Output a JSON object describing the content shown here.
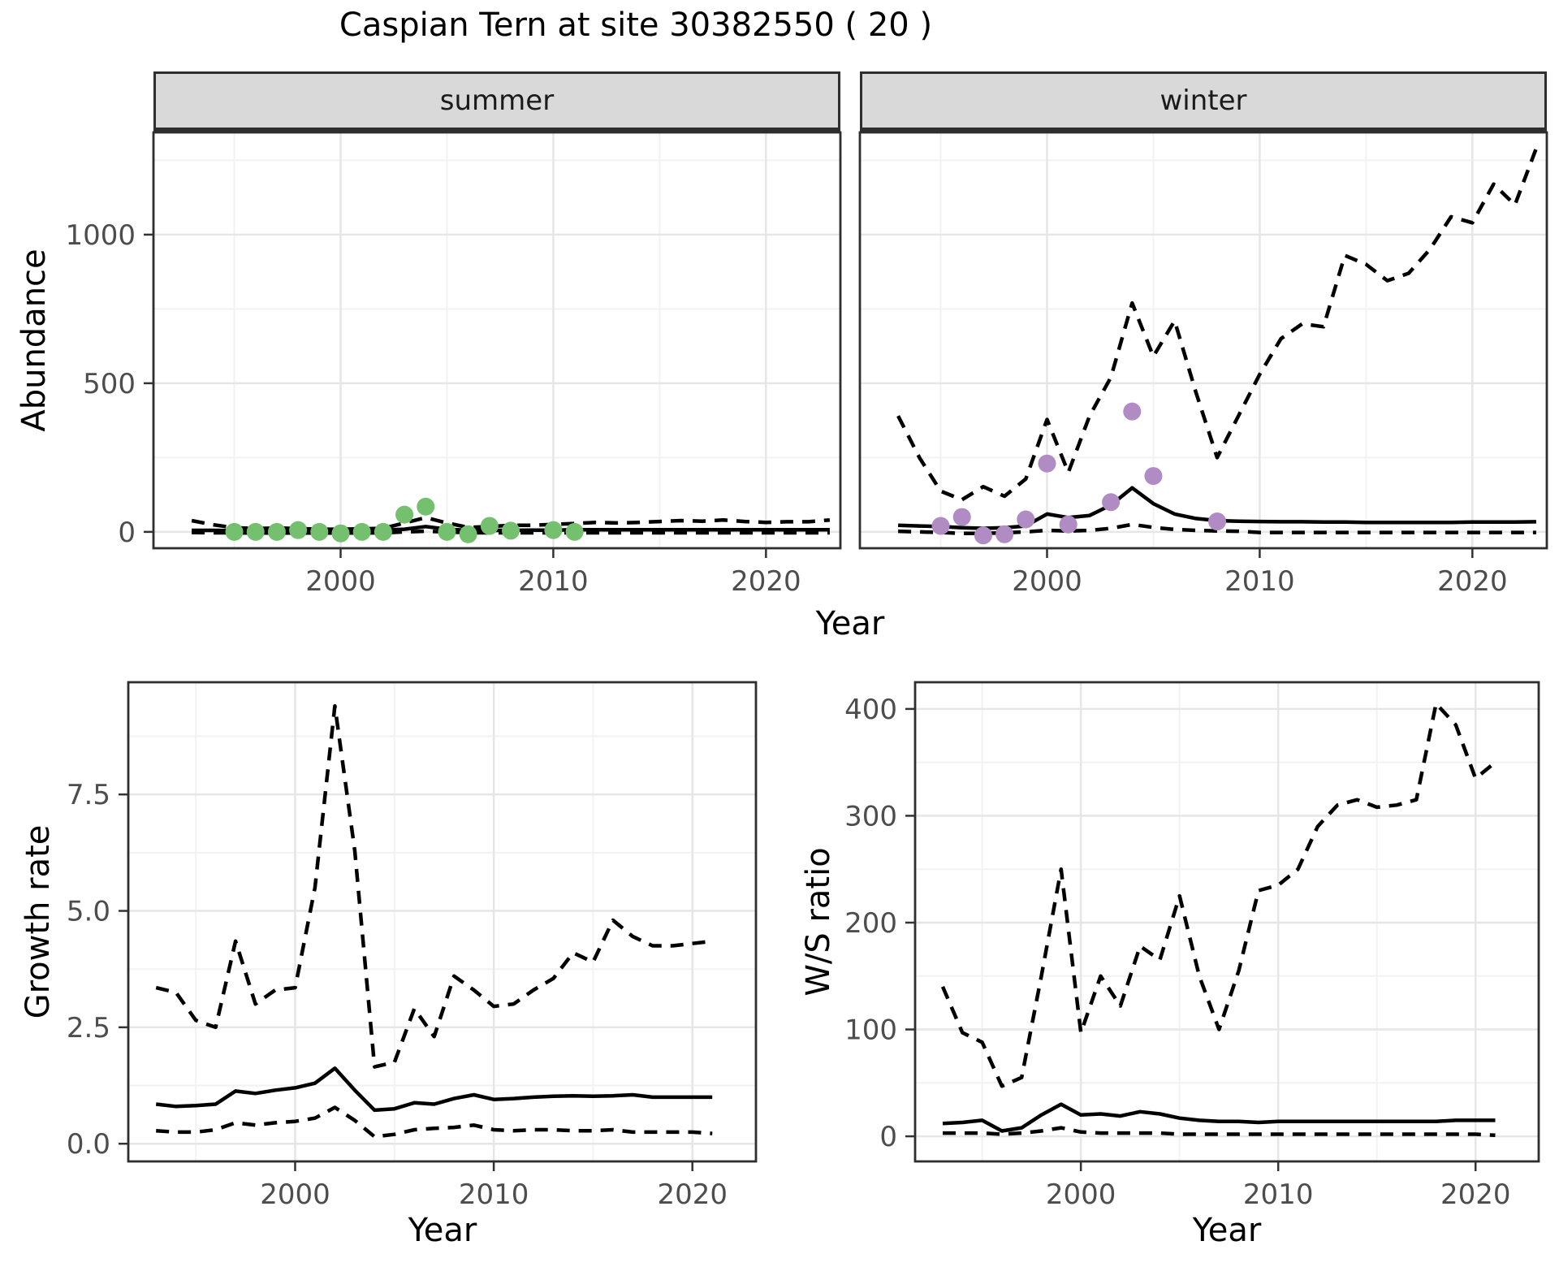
{
  "title": "Caspian Tern at site 30382550 ( 20 )",
  "colors": {
    "observed_summer": "#74c06e",
    "observed_winter": "#b18cc4",
    "line": "#000000",
    "strip_bg": "#d9d9d9",
    "panel_bg": "#ffffff",
    "panel_border": "#2e2e2e",
    "grid_major": "#e6e6e6",
    "grid_minor": "#f2f2f2",
    "tick_mark": "#333333",
    "tick_label": "#4d4d4d"
  },
  "chart_data": [
    {
      "id": "abundance-summer",
      "type": "line",
      "facet_label": "summer",
      "xlabel": "Year",
      "ylabel": "Abundance",
      "xlim": [
        1991.2,
        2023.5
      ],
      "ylim": [
        -55,
        1344
      ],
      "xticks": [
        2000,
        2010,
        2020
      ],
      "xtick_labels": [
        "2000",
        "2010",
        "2020"
      ],
      "xticks_minor": [
        1995,
        2005,
        2015
      ],
      "yticks": [
        0,
        500,
        1000
      ],
      "ytick_labels": [
        "0",
        "500",
        "1000"
      ],
      "yticks_minor": [
        250,
        750,
        1250
      ],
      "grid": true,
      "legend": "none",
      "series": [
        {
          "name": "upper-ci",
          "style": "dashed",
          "x": [
            1993,
            1994,
            1995,
            1996,
            1997,
            1998,
            1999,
            2000,
            2001,
            2002,
            2003,
            2004,
            2005,
            2006,
            2007,
            2008,
            2009,
            2010,
            2011,
            2012,
            2013,
            2014,
            2015,
            2016,
            2017,
            2018,
            2019,
            2020,
            2021,
            2022,
            2023
          ],
          "y": [
            38,
            24,
            14,
            11,
            13,
            11,
            9,
            9,
            10,
            12,
            30,
            48,
            30,
            15,
            18,
            22,
            22,
            25,
            28,
            32,
            30,
            32,
            35,
            38,
            36,
            40,
            35,
            32,
            34,
            34,
            40
          ]
        },
        {
          "name": "median",
          "style": "solid",
          "x": [
            1993,
            1994,
            1995,
            1996,
            1997,
            1998,
            1999,
            2000,
            2001,
            2002,
            2003,
            2004,
            2005,
            2006,
            2007,
            2008,
            2009,
            2010,
            2011,
            2012,
            2013,
            2014,
            2015,
            2016,
            2017,
            2018,
            2019,
            2020,
            2021,
            2022,
            2023
          ],
          "y": [
            5,
            5,
            4,
            4,
            4,
            4,
            4,
            4,
            5,
            6,
            9,
            18,
            9,
            5,
            5,
            5,
            6,
            6,
            7,
            7,
            7,
            7,
            7,
            7,
            7,
            7,
            7,
            7,
            7,
            7,
            7
          ]
        },
        {
          "name": "lower-ci",
          "style": "dashed",
          "x": [
            1993,
            1994,
            1995,
            1996,
            1997,
            1998,
            1999,
            2000,
            2001,
            2002,
            2003,
            2004,
            2005,
            2006,
            2007,
            2008,
            2009,
            2010,
            2011,
            2012,
            2013,
            2014,
            2015,
            2016,
            2017,
            2018,
            2019,
            2020,
            2021,
            2022,
            2023
          ],
          "y": [
            -2,
            -3,
            -3,
            -4,
            -4,
            -4,
            -4,
            -4,
            -4,
            -3,
            0,
            2,
            0,
            -3,
            -3,
            -3,
            -3,
            -3,
            -3,
            -3,
            -3,
            -3,
            -3,
            -3,
            -3,
            -3,
            -3,
            -3,
            -3,
            -3,
            -3
          ]
        },
        {
          "name": "observations",
          "style": "points",
          "color": "#74c06e",
          "x": [
            1995,
            1996,
            1997,
            1998,
            1999,
            2000,
            2001,
            2002,
            2003,
            2004,
            2005,
            2006,
            2007,
            2008,
            2010,
            2011
          ],
          "y": [
            0,
            0,
            0,
            6,
            0,
            -5,
            0,
            0,
            58,
            85,
            0,
            -8,
            20,
            4,
            6,
            0
          ]
        }
      ]
    },
    {
      "id": "abundance-winter",
      "type": "line",
      "facet_label": "winter",
      "xlabel": "Year",
      "ylabel": "Abundance",
      "xlim": [
        1991.2,
        2023.5
      ],
      "ylim": [
        -55,
        1344
      ],
      "xticks": [
        2000,
        2010,
        2020
      ],
      "xtick_labels": [
        "2000",
        "2010",
        "2020"
      ],
      "xticks_minor": [
        1995,
        2005,
        2015
      ],
      "yticks": [
        0,
        500,
        1000
      ],
      "ytick_labels": [
        "0",
        "500",
        "1000"
      ],
      "yticks_minor": [
        250,
        750,
        1250
      ],
      "grid": true,
      "legend": "none",
      "series": [
        {
          "name": "upper-ci",
          "style": "dashed",
          "x": [
            1993,
            1994,
            1995,
            1996,
            1997,
            1998,
            1999,
            2000,
            2001,
            2002,
            2003,
            2004,
            2005,
            2006,
            2007,
            2008,
            2009,
            2010,
            2011,
            2012,
            2013,
            2014,
            2015,
            2016,
            2017,
            2018,
            2019,
            2020,
            2021,
            2022,
            2023
          ],
          "y": [
            390,
            250,
            137,
            108,
            152,
            120,
            178,
            378,
            200,
            390,
            520,
            770,
            590,
            710,
            470,
            250,
            390,
            530,
            650,
            700,
            690,
            930,
            900,
            845,
            870,
            950,
            1060,
            1040,
            1170,
            1100,
            1290
          ]
        },
        {
          "name": "median",
          "style": "solid",
          "x": [
            1993,
            1994,
            1995,
            1996,
            1997,
            1998,
            1999,
            2000,
            2001,
            2002,
            2003,
            2004,
            2005,
            2006,
            2007,
            2008,
            2009,
            2010,
            2011,
            2012,
            2013,
            2014,
            2015,
            2016,
            2017,
            2018,
            2019,
            2020,
            2021,
            2022,
            2023
          ],
          "y": [
            22,
            20,
            18,
            14,
            12,
            14,
            20,
            60,
            48,
            55,
            90,
            148,
            95,
            60,
            45,
            38,
            36,
            35,
            34,
            34,
            33,
            33,
            32,
            32,
            32,
            32,
            32,
            33,
            33,
            33,
            34
          ]
        },
        {
          "name": "lower-ci",
          "style": "dashed",
          "x": [
            1993,
            1994,
            1995,
            1996,
            1997,
            1998,
            1999,
            2000,
            2001,
            2002,
            2003,
            2004,
            2005,
            2006,
            2007,
            2008,
            2009,
            2010,
            2011,
            2012,
            2013,
            2014,
            2015,
            2016,
            2017,
            2018,
            2019,
            2020,
            2021,
            2022,
            2023
          ],
          "y": [
            2,
            0,
            -2,
            -5,
            -5,
            -3,
            0,
            5,
            3,
            5,
            12,
            25,
            15,
            8,
            5,
            3,
            2,
            -2,
            -2,
            -2,
            -2,
            -2,
            -2,
            -2,
            -2,
            -2,
            -2,
            -2,
            -2,
            -2,
            -2
          ]
        },
        {
          "name": "observations",
          "style": "points",
          "color": "#b18cc4",
          "x": [
            1995,
            1996,
            1997,
            1998,
            1999,
            2000,
            2001,
            2003,
            2004,
            2005,
            2008
          ],
          "y": [
            20,
            50,
            -12,
            -8,
            42,
            230,
            25,
            100,
            405,
            188,
            35
          ]
        }
      ]
    },
    {
      "id": "growth-rate",
      "type": "line",
      "facet_label": null,
      "xlabel": "Year",
      "ylabel": "Growth rate",
      "xlim": [
        1991.6,
        2023.2
      ],
      "ylim": [
        -0.38,
        9.91
      ],
      "xticks": [
        2000,
        2010,
        2020
      ],
      "xtick_labels": [
        "2000",
        "2010",
        "2020"
      ],
      "xticks_minor": [
        1995,
        2005,
        2015
      ],
      "yticks": [
        0,
        2.5,
        5,
        7.5
      ],
      "ytick_labels": [
        "0.0",
        "2.5",
        "5.0",
        "7.5"
      ],
      "yticks_minor": [
        1.25,
        3.75,
        6.25,
        8.75
      ],
      "grid": true,
      "legend": "none",
      "series": [
        {
          "name": "upper-ci",
          "style": "dashed",
          "x": [
            1993,
            1994,
            1995,
            1996,
            1997,
            1998,
            1999,
            2000,
            2001,
            2002,
            2003,
            2004,
            2005,
            2006,
            2007,
            2008,
            2009,
            2010,
            2011,
            2012,
            2013,
            2014,
            2015,
            2016,
            2017,
            2018,
            2019,
            2020,
            2021
          ],
          "y": [
            3.35,
            3.25,
            2.65,
            2.5,
            4.35,
            3.0,
            3.3,
            3.35,
            5.5,
            9.4,
            6.3,
            1.65,
            1.75,
            2.9,
            2.3,
            3.6,
            3.3,
            2.95,
            3.0,
            3.3,
            3.55,
            4.1,
            3.9,
            4.8,
            4.45,
            4.25,
            4.25,
            4.3,
            4.35
          ]
        },
        {
          "name": "median",
          "style": "solid",
          "x": [
            1993,
            1994,
            1995,
            1996,
            1997,
            1998,
            1999,
            2000,
            2001,
            2002,
            2003,
            2004,
            2005,
            2006,
            2007,
            2008,
            2009,
            2010,
            2011,
            2012,
            2013,
            2014,
            2015,
            2016,
            2017,
            2018,
            2019,
            2020,
            2021
          ],
          "y": [
            0.85,
            0.8,
            0.82,
            0.85,
            1.13,
            1.08,
            1.15,
            1.2,
            1.3,
            1.62,
            1.15,
            0.72,
            0.75,
            0.88,
            0.85,
            0.97,
            1.05,
            0.95,
            0.97,
            1.0,
            1.02,
            1.03,
            1.02,
            1.03,
            1.05,
            1.0,
            1.0,
            1.0,
            1.0
          ]
        },
        {
          "name": "lower-ci",
          "style": "dashed",
          "x": [
            1993,
            1994,
            1995,
            1996,
            1997,
            1998,
            1999,
            2000,
            2001,
            2002,
            2003,
            2004,
            2005,
            2006,
            2007,
            2008,
            2009,
            2010,
            2011,
            2012,
            2013,
            2014,
            2015,
            2016,
            2017,
            2018,
            2019,
            2020,
            2021
          ],
          "y": [
            0.28,
            0.25,
            0.25,
            0.3,
            0.45,
            0.4,
            0.45,
            0.48,
            0.55,
            0.78,
            0.5,
            0.15,
            0.2,
            0.3,
            0.33,
            0.35,
            0.4,
            0.3,
            0.28,
            0.3,
            0.3,
            0.28,
            0.28,
            0.3,
            0.25,
            0.25,
            0.25,
            0.25,
            0.22
          ]
        }
      ]
    },
    {
      "id": "ws-ratio",
      "type": "line",
      "facet_label": null,
      "xlabel": "Year",
      "ylabel": "W/S ratio",
      "xlim": [
        1991.6,
        2023.2
      ],
      "ylim": [
        -23.5,
        425
      ],
      "xticks": [
        2000,
        2010,
        2020
      ],
      "xtick_labels": [
        "2000",
        "2010",
        "2020"
      ],
      "xticks_minor": [
        1995,
        2005,
        2015
      ],
      "yticks": [
        0,
        100,
        200,
        300,
        400
      ],
      "ytick_labels": [
        "0",
        "100",
        "200",
        "300",
        "400"
      ],
      "yticks_minor": [
        50,
        150,
        250,
        350
      ],
      "grid": true,
      "legend": "none",
      "series": [
        {
          "name": "upper-ci",
          "style": "dashed",
          "x": [
            1993,
            1994,
            1995,
            1996,
            1997,
            1998,
            1999,
            2000,
            2001,
            2002,
            2003,
            2004,
            2005,
            2006,
            2007,
            2008,
            2009,
            2010,
            2011,
            2012,
            2013,
            2014,
            2015,
            2016,
            2017,
            2018,
            2019,
            2020,
            2021
          ],
          "y": [
            140,
            97,
            88,
            47,
            55,
            150,
            250,
            97,
            150,
            122,
            178,
            165,
            225,
            150,
            100,
            155,
            230,
            235,
            250,
            290,
            310,
            315,
            308,
            310,
            315,
            405,
            385,
            335,
            350
          ]
        },
        {
          "name": "median",
          "style": "solid",
          "x": [
            1993,
            1994,
            1995,
            1996,
            1997,
            1998,
            1999,
            2000,
            2001,
            2002,
            2003,
            2004,
            2005,
            2006,
            2007,
            2008,
            2009,
            2010,
            2011,
            2012,
            2013,
            2014,
            2015,
            2016,
            2017,
            2018,
            2019,
            2020,
            2021
          ],
          "y": [
            12,
            13,
            15,
            5,
            8,
            20,
            30,
            20,
            21,
            19,
            23,
            21,
            17,
            15,
            14,
            14,
            13,
            14,
            14,
            14,
            14,
            14,
            14,
            14,
            14,
            14,
            15,
            15,
            15
          ]
        },
        {
          "name": "lower-ci",
          "style": "dashed",
          "x": [
            1993,
            1994,
            1995,
            1996,
            1997,
            1998,
            1999,
            2000,
            2001,
            2002,
            2003,
            2004,
            2005,
            2006,
            2007,
            2008,
            2009,
            2010,
            2011,
            2012,
            2013,
            2014,
            2015,
            2016,
            2017,
            2018,
            2019,
            2020,
            2021
          ],
          "y": [
            3,
            3,
            3,
            2,
            3,
            5,
            8,
            4,
            3,
            3,
            3,
            3,
            2,
            2,
            2,
            2,
            2,
            2,
            2,
            2,
            2,
            2,
            2,
            2,
            2,
            2,
            2,
            2,
            1
          ]
        }
      ]
    }
  ]
}
